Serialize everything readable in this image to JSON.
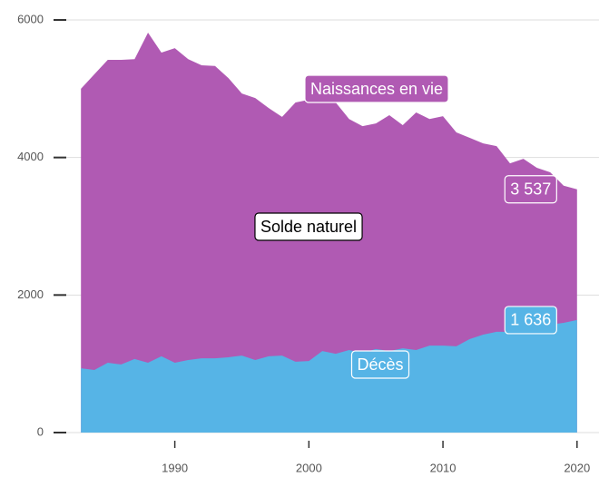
{
  "chart_data": {
    "type": "area",
    "x": [
      1983,
      1984,
      1985,
      1986,
      1987,
      1988,
      1989,
      1990,
      1991,
      1992,
      1993,
      1994,
      1995,
      1996,
      1997,
      1998,
      1999,
      2000,
      2001,
      2002,
      2003,
      2004,
      2005,
      2006,
      2007,
      2008,
      2009,
      2010,
      2011,
      2012,
      2013,
      2014,
      2015,
      2016,
      2017,
      2018,
      2019,
      2020
    ],
    "series": [
      {
        "name": "Naissances en vie",
        "color": "#b05ab3",
        "values": [
          5000,
          5210,
          5420,
          5420,
          5430,
          5815,
          5525,
          5590,
          5430,
          5340,
          5330,
          5155,
          4930,
          4865,
          4720,
          4590,
          4800,
          4840,
          4865,
          4800,
          4560,
          4455,
          4495,
          4615,
          4470,
          4655,
          4560,
          4600,
          4365,
          4285,
          4205,
          4165,
          3915,
          3980,
          3850,
          3785,
          3590,
          3537
        ],
        "value_labels": [
          null,
          null,
          null,
          null,
          null,
          null,
          null,
          null,
          null,
          null,
          null,
          null,
          null,
          null,
          null,
          null,
          null,
          null,
          null,
          null,
          null,
          null,
          null,
          null,
          null,
          null,
          null,
          null,
          null,
          null,
          null,
          null,
          null,
          null,
          null,
          null,
          null,
          "3 537"
        ]
      },
      {
        "name": "Décès",
        "color": "#56b4e6",
        "values": [
          935,
          910,
          1015,
          990,
          1070,
          1015,
          1110,
          1015,
          1055,
          1080,
          1080,
          1095,
          1120,
          1055,
          1110,
          1120,
          1030,
          1040,
          1185,
          1145,
          1200,
          1160,
          1215,
          1185,
          1225,
          1200,
          1265,
          1265,
          1255,
          1360,
          1425,
          1465,
          1465,
          1465,
          1530,
          1570,
          1595,
          1636
        ],
        "value_labels": [
          null,
          null,
          null,
          null,
          null,
          null,
          null,
          null,
          null,
          null,
          null,
          null,
          null,
          null,
          null,
          null,
          null,
          null,
          null,
          null,
          null,
          null,
          null,
          null,
          null,
          null,
          null,
          null,
          null,
          null,
          null,
          null,
          null,
          null,
          null,
          null,
          null,
          "1 636"
        ]
      }
    ],
    "annotation": "Solde naturel",
    "xlim": [
      1981.7,
      2021.3
    ],
    "xticks": [
      1990,
      2000,
      2010,
      2020
    ],
    "ylim": [
      0,
      6000
    ],
    "yticks": [
      0,
      2000,
      4000,
      6000
    ],
    "grid": true
  }
}
